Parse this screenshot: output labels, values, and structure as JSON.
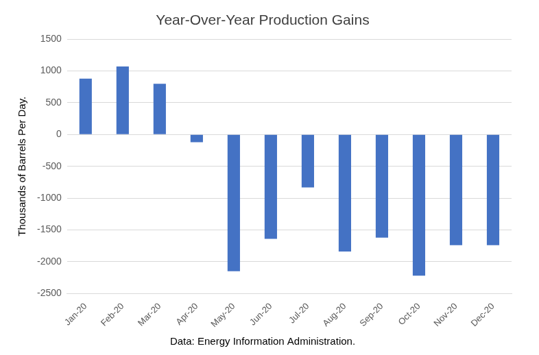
{
  "chart_data": {
    "type": "bar",
    "title": "Year-Over-Year Production Gains",
    "y_label": "Thousands of Barrels Per Day.",
    "annotation": "Data: Energy Information Administration.",
    "categories": [
      "Jan-20",
      "Feb-20",
      "Mar-20",
      "Apr-20",
      "May-20",
      "Jun-20",
      "Jul-20",
      "Aug-20",
      "Sep-20",
      "Oct-20",
      "Nov-20",
      "Dec-20"
    ],
    "values": [
      880,
      1070,
      800,
      -120,
      -2150,
      -1640,
      -830,
      -1840,
      -1620,
      -2220,
      -1740,
      -1740
    ],
    "color": "#4472c4",
    "ylim": [
      -2500,
      1500
    ],
    "yticks": [
      -2500,
      -2000,
      -1500,
      -1000,
      -500,
      0,
      500,
      1000,
      1500
    ],
    "grid": true
  }
}
